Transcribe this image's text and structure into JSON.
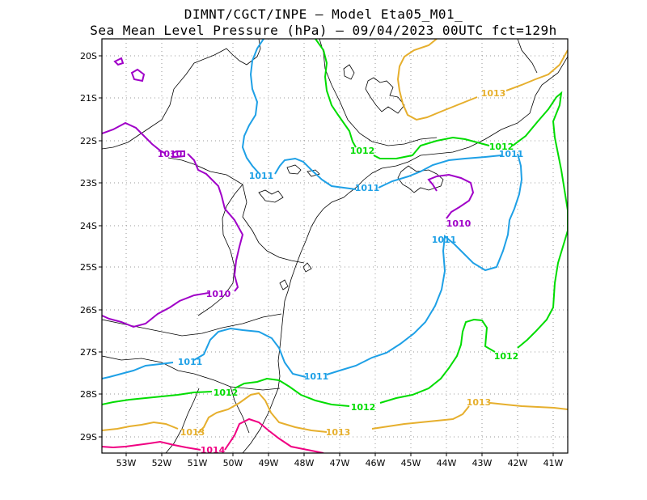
{
  "header": {
    "line1": "DIMNT/CGCT/INPE –  Model Eta05_M01_",
    "line2": "Sea Mean Level Pressure (hPa) – 09/04/2023 00UTC fct=129h"
  },
  "map": {
    "lon_ticks": [
      "53W",
      "52W",
      "51W",
      "50W",
      "49W",
      "48W",
      "47W",
      "46W",
      "45W",
      "44W",
      "43W",
      "42W",
      "41W"
    ],
    "lat_ticks": [
      "20S",
      "21S",
      "22S",
      "23S",
      "24S",
      "25S",
      "26S",
      "27S",
      "28S",
      "29S"
    ],
    "grid": true,
    "colors": {
      "c1010": "#a000c8",
      "c1011": "#1ea0e6",
      "c1012": "#00dc00",
      "c1013": "#e6af2d",
      "c1014": "#f00082",
      "boundary": "#000000",
      "grid": "#999999"
    },
    "contour_labels": [
      {
        "text": "1010",
        "level": "1010"
      },
      {
        "text": "1010",
        "level": "1010"
      },
      {
        "text": "1010",
        "level": "1010"
      },
      {
        "text": "1011",
        "level": "1011"
      },
      {
        "text": "1011",
        "level": "1011"
      },
      {
        "text": "1011",
        "level": "1011"
      },
      {
        "text": "1011",
        "level": "1011"
      },
      {
        "text": "1011",
        "level": "1011"
      },
      {
        "text": "1011",
        "level": "1011"
      },
      {
        "text": "1012",
        "level": "1012"
      },
      {
        "text": "1012",
        "level": "1012"
      },
      {
        "text": "1012",
        "level": "1012"
      },
      {
        "text": "1012",
        "level": "1012"
      },
      {
        "text": "1012",
        "level": "1012"
      },
      {
        "text": "1013",
        "level": "1013"
      },
      {
        "text": "1013",
        "level": "1013"
      },
      {
        "text": "1013",
        "level": "1013"
      },
      {
        "text": "1013",
        "level": "1013"
      },
      {
        "text": "1014",
        "level": "1014"
      }
    ]
  }
}
